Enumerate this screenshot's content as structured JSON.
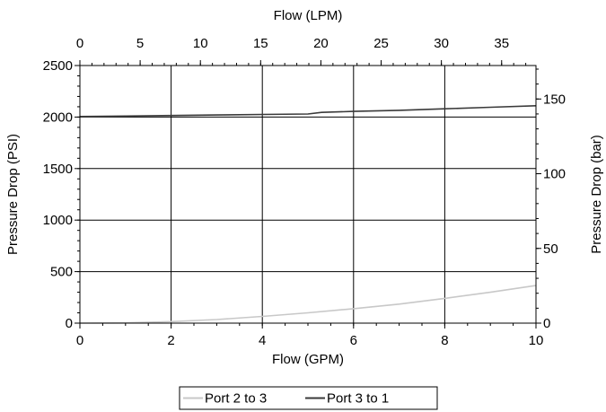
{
  "chart_data": {
    "type": "line",
    "xlabel": "Flow (GPM)",
    "x2label": "Flow (LPM)",
    "ylabel": "Pressure Drop (PSI)",
    "y2label": "Pressure Drop (bar)",
    "xlim": [
      0,
      10
    ],
    "ylim": [
      0,
      2500
    ],
    "x2lim": [
      0,
      37.85
    ],
    "y2lim": [
      0,
      172.4
    ],
    "x_ticks": [
      0,
      2,
      4,
      6,
      8,
      10
    ],
    "y_ticks": [
      0,
      500,
      1000,
      1500,
      2000,
      2500
    ],
    "x2_ticks": [
      0,
      5,
      10,
      15,
      20,
      25,
      30,
      35
    ],
    "y2_ticks": [
      0,
      50,
      100,
      150
    ],
    "grid": true,
    "legend_position": "bottom",
    "series": [
      {
        "name": "Port 2 to 3",
        "color": "#c8c8c8",
        "x": [
          0,
          1,
          2,
          3,
          4,
          5,
          6,
          7,
          8,
          9,
          10
        ],
        "y": [
          0,
          3,
          15,
          35,
          65,
          100,
          140,
          185,
          240,
          300,
          365
        ]
      },
      {
        "name": "Port 3 to 1",
        "color": "#3a3a3a",
        "x": [
          0,
          1,
          2,
          3,
          4,
          5,
          5.3,
          6,
          7,
          8,
          9,
          10
        ],
        "y": [
          2005,
          2010,
          2015,
          2020,
          2025,
          2030,
          2045,
          2055,
          2065,
          2080,
          2095,
          2110
        ]
      }
    ]
  }
}
